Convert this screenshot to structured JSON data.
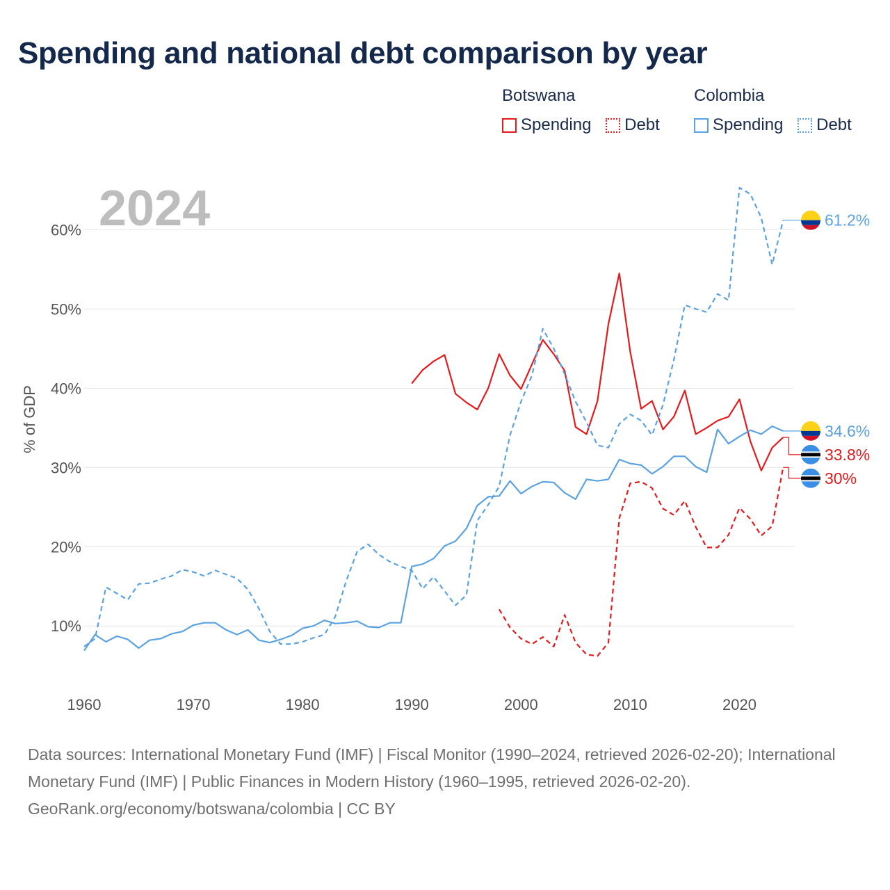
{
  "title": "Spending and national debt comparison by year",
  "legend": [
    {
      "group": "Botswana",
      "color": "#e41a1c",
      "items": [
        {
          "label": "Spending",
          "style": "solid"
        },
        {
          "label": "Debt",
          "style": "dotted"
        }
      ]
    },
    {
      "group": "Colombia",
      "color": "#5aa2e0",
      "items": [
        {
          "label": "Spending",
          "style": "solid"
        },
        {
          "label": "Debt",
          "style": "dotted"
        }
      ]
    }
  ],
  "chart_data": {
    "type": "line",
    "year_label": "2024",
    "ylabel": "% of GDP",
    "xlim": [
      1960,
      2025
    ],
    "ylim": [
      3,
      66
    ],
    "x_ticks": [
      1960,
      1970,
      1980,
      1990,
      2000,
      2010,
      2020
    ],
    "x_tick_labels": [
      "1960",
      "1970",
      "1980",
      "1990",
      "2000",
      "2010",
      "2020"
    ],
    "y_ticks": [
      10,
      20,
      30,
      40,
      50,
      60
    ],
    "y_tick_labels": [
      "10%",
      "20%",
      "30%",
      "40%",
      "50%",
      "60%"
    ],
    "series": [
      {
        "name": "Botswana Spending",
        "country": "Botswana",
        "metric": "Spending",
        "color": "#e41a1c",
        "dash": "solid",
        "x": [
          1990,
          1991,
          1992,
          1993,
          1994,
          1995,
          1996,
          1997,
          1998,
          1999,
          2000,
          2001,
          2002,
          2003,
          2004,
          2005,
          2006,
          2007,
          2008,
          2009,
          2010,
          2011,
          2012,
          2013,
          2014,
          2015,
          2016,
          2017,
          2018,
          2019,
          2020,
          2021,
          2022,
          2023,
          2024
        ],
        "values": [
          40.6,
          42.3,
          43.4,
          44.2,
          39.3,
          38.2,
          37.3,
          40.0,
          44.3,
          41.6,
          39.9,
          43.0,
          46.1,
          44.3,
          42.2,
          35.1,
          34.2,
          38.4,
          48.1,
          54.5,
          44.6,
          37.4,
          38.4,
          34.8,
          36.4,
          39.7,
          34.2,
          35.0,
          35.9,
          36.4,
          38.6,
          33.3,
          29.6,
          32.5,
          33.8
        ],
        "end_label": "33.8%",
        "flag": "botswana"
      },
      {
        "name": "Botswana Debt",
        "country": "Botswana",
        "metric": "Debt",
        "color": "#e41a1c",
        "dash": "dashed",
        "x": [
          1998,
          1999,
          2000,
          2001,
          2002,
          2003,
          2004,
          2005,
          2006,
          2007,
          2008,
          2009,
          2010,
          2011,
          2012,
          2013,
          2014,
          2015,
          2016,
          2017,
          2018,
          2019,
          2020,
          2021,
          2022,
          2023,
          2024
        ],
        "values": [
          12.1,
          9.8,
          8.4,
          7.7,
          8.6,
          7.4,
          11.4,
          7.9,
          6.4,
          6.2,
          7.9,
          23.6,
          28.0,
          28.2,
          27.4,
          24.8,
          24.0,
          25.8,
          22.5,
          19.9,
          19.9,
          21.5,
          24.9,
          23.5,
          21.4,
          22.6,
          30.0
        ],
        "end_label": "30%",
        "flag": "botswana"
      },
      {
        "name": "Colombia Spending",
        "country": "Colombia",
        "metric": "Spending",
        "color": "#5aa2e0",
        "dash": "solid",
        "x": [
          1960,
          1961,
          1962,
          1963,
          1964,
          1965,
          1966,
          1967,
          1968,
          1969,
          1970,
          1971,
          1972,
          1973,
          1974,
          1975,
          1976,
          1977,
          1978,
          1979,
          1980,
          1981,
          1982,
          1983,
          1984,
          1985,
          1986,
          1987,
          1988,
          1989,
          1990,
          1991,
          1992,
          1993,
          1994,
          1995,
          1996,
          1997,
          1998,
          1999,
          2000,
          2001,
          2002,
          2003,
          2004,
          2005,
          2006,
          2007,
          2008,
          2009,
          2010,
          2011,
          2012,
          2013,
          2014,
          2015,
          2016,
          2017,
          2018,
          2019,
          2020,
          2021,
          2022,
          2023,
          2024
        ],
        "values": [
          6.9,
          8.9,
          8.0,
          8.7,
          8.3,
          7.2,
          8.2,
          8.4,
          9.0,
          9.3,
          10.1,
          10.4,
          10.4,
          9.5,
          8.9,
          9.5,
          8.2,
          7.9,
          8.3,
          8.8,
          9.7,
          10.0,
          10.7,
          10.3,
          10.4,
          10.6,
          9.9,
          9.8,
          10.4,
          10.4,
          17.5,
          17.8,
          18.5,
          20.1,
          20.7,
          22.3,
          25.2,
          26.3,
          26.4,
          28.3,
          26.7,
          27.6,
          28.2,
          28.1,
          26.8,
          26.0,
          28.5,
          28.3,
          28.5,
          31.0,
          30.5,
          30.3,
          29.2,
          30.1,
          31.4,
          31.4,
          30.1,
          29.4,
          34.8,
          33.0,
          33.9,
          34.7,
          34.2,
          35.2,
          34.6
        ],
        "end_label": "34.6%",
        "flag": "colombia"
      },
      {
        "name": "Colombia Debt",
        "country": "Colombia",
        "metric": "Debt",
        "color": "#5aa2e0",
        "dash": "dashed",
        "x": [
          1960,
          1961,
          1962,
          1963,
          1964,
          1965,
          1966,
          1967,
          1968,
          1969,
          1970,
          1971,
          1972,
          1973,
          1974,
          1975,
          1976,
          1977,
          1978,
          1979,
          1980,
          1981,
          1982,
          1983,
          1984,
          1985,
          1986,
          1987,
          1988,
          1989,
          1990,
          1991,
          1992,
          1993,
          1994,
          1995,
          1996,
          1997,
          1998,
          1999,
          2000,
          2001,
          2002,
          2003,
          2004,
          2005,
          2006,
          2007,
          2008,
          2009,
          2010,
          2011,
          2012,
          2013,
          2014,
          2015,
          2016,
          2017,
          2018,
          2019,
          2020,
          2021,
          2022,
          2023,
          2024
        ],
        "values": [
          7.4,
          8.4,
          14.9,
          14.1,
          13.3,
          15.3,
          15.4,
          15.9,
          16.3,
          17.1,
          16.8,
          16.3,
          17.0,
          16.5,
          16.0,
          14.6,
          12.2,
          9.3,
          7.7,
          7.7,
          8.0,
          8.5,
          8.9,
          11.2,
          15.7,
          19.4,
          20.3,
          19.0,
          18.1,
          17.5,
          17.0,
          14.7,
          16.2,
          14.4,
          12.6,
          13.9,
          23.3,
          25.3,
          27.6,
          34.1,
          38.3,
          41.6,
          47.5,
          45.0,
          41.8,
          38.3,
          35.7,
          32.8,
          32.5,
          35.5,
          36.7,
          35.9,
          34.1,
          37.9,
          43.6,
          50.5,
          50.0,
          49.6,
          51.9,
          51.1,
          65.3,
          64.5,
          61.5,
          55.6,
          61.2
        ],
        "end_label": "61.2%",
        "flag": "colombia"
      }
    ]
  },
  "footer": {
    "sources": "Data sources: International Monetary Fund (IMF) | Fiscal Monitor (1990–2024, retrieved 2026-02-20); International Monetary Fund (IMF) | Public Finances in Modern History (1960–1995, retrieved 2026-02-20).",
    "credit": "GeoRank.org/economy/botswana/colombia | CC BY"
  }
}
